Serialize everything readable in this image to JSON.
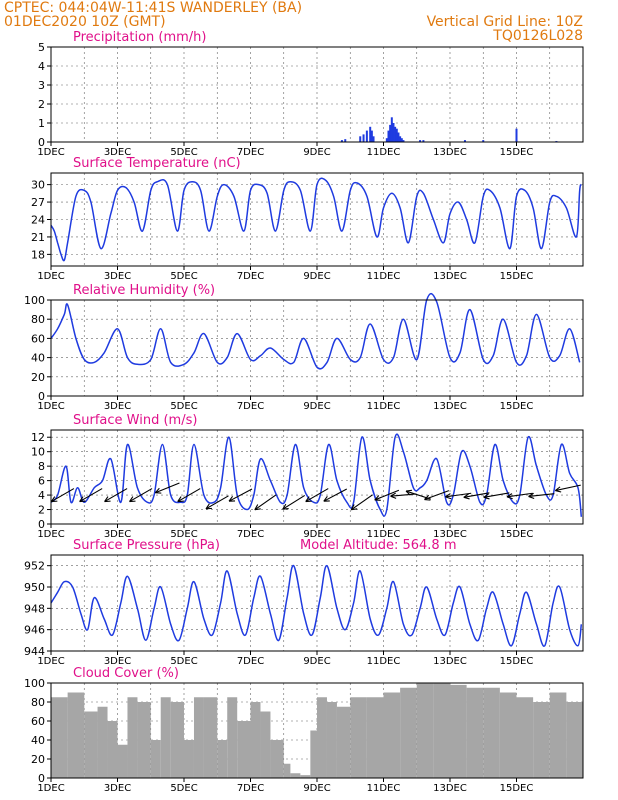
{
  "header": {
    "line1_left": "CPTEC:   044:04W-11:41S   WANDERLEY (BA)",
    "line2_left": "01DEC2020 10Z (GMT)",
    "line1_right": "Vertical Grid Line: 10Z",
    "line2_right": "TQ0126L028"
  },
  "colors": {
    "header": "#e07a10",
    "title": "#e0108a",
    "line": "#1f3be0",
    "bar": "#1f3be0",
    "cloud": "#a6a6a6",
    "arrow": "#000000"
  },
  "x_tick_labels": [
    "1DEC",
    "3DEC",
    "5DEC",
    "7DEC",
    "9DEC",
    "11DEC",
    "13DEC",
    "15DEC"
  ],
  "chart_data": [
    {
      "type": "bar",
      "id": "precip",
      "title": "Precipitation (mm/h)",
      "y_ticks": [
        "0",
        "1",
        "2",
        "3",
        "4",
        "5"
      ],
      "ylim": [
        0,
        5
      ],
      "x_units": "days since 01DEC2020 10Z",
      "x": [
        8.75,
        8.85,
        9.3,
        9.4,
        9.5,
        9.6,
        9.65,
        9.7,
        10.1,
        10.15,
        10.2,
        10.25,
        10.3,
        10.35,
        10.4,
        10.45,
        10.5,
        10.55,
        10.6,
        11.1,
        11.2,
        12.45,
        13.0,
        14.0,
        15.2
      ],
      "values": [
        0.1,
        0.15,
        0.3,
        0.4,
        0.6,
        0.8,
        0.6,
        0.3,
        0.2,
        0.6,
        0.9,
        1.3,
        1.0,
        0.8,
        0.7,
        0.5,
        0.3,
        0.2,
        0.1,
        0.1,
        0.1,
        0.1,
        0.1,
        0.7,
        0.05
      ],
      "grid": true
    },
    {
      "type": "line",
      "id": "temp",
      "title": "Surface Temperature (nC)",
      "y_ticks": [
        "18",
        "21",
        "24",
        "27",
        "30"
      ],
      "ylim": [
        16,
        32
      ],
      "t": [
        0,
        0.1,
        0.2,
        0.3,
        0.4,
        0.5,
        0.75,
        1.0,
        1.2,
        1.5,
        1.8,
        2.0,
        2.25,
        2.5,
        2.75,
        3.0,
        3.2,
        3.5,
        3.8,
        4.0,
        4.25,
        4.5,
        4.75,
        5.0,
        5.2,
        5.5,
        5.8,
        6.0,
        6.25,
        6.5,
        6.75,
        7.0,
        7.2,
        7.5,
        7.8,
        8.0,
        8.25,
        8.5,
        8.75,
        9.0,
        9.2,
        9.5,
        9.8,
        10.0,
        10.25,
        10.5,
        10.75,
        11.0,
        11.2,
        11.5,
        11.8,
        12.0,
        12.25,
        12.5,
        12.75,
        13.0,
        13.2,
        13.5,
        13.8,
        14.0,
        14.25,
        14.5,
        14.75,
        15.0,
        15.2,
        15.5,
        15.8,
        15.9,
        15.95
      ],
      "values": [
        23,
        22,
        20,
        18,
        17,
        20,
        28,
        29,
        27,
        19,
        25,
        29,
        29.5,
        27,
        22,
        29,
        30.5,
        30,
        22,
        29,
        30.5,
        29,
        22,
        28,
        30,
        28,
        22,
        29,
        30,
        28.5,
        22,
        29,
        30.5,
        29,
        22,
        30,
        30.8,
        28,
        22,
        29,
        30.3,
        28,
        21,
        26,
        28.5,
        26,
        20,
        28,
        28.5,
        24,
        20,
        25,
        27,
        24,
        20,
        28,
        29,
        26,
        19,
        28,
        29,
        26,
        19,
        27,
        28,
        26,
        21,
        29,
        30
      ],
      "grid": true
    },
    {
      "type": "line",
      "id": "rh",
      "title": "Relative Humidity (%)",
      "y_ticks": [
        "0",
        "20",
        "40",
        "60",
        "80",
        "100"
      ],
      "ylim": [
        0,
        100
      ],
      "t": [
        0,
        0.2,
        0.4,
        0.5,
        0.75,
        1.0,
        1.3,
        1.6,
        2.0,
        2.3,
        2.6,
        3.0,
        3.3,
        3.6,
        4.0,
        4.3,
        4.6,
        5.0,
        5.3,
        5.6,
        6.0,
        6.3,
        6.6,
        7.0,
        7.3,
        7.6,
        8.0,
        8.3,
        8.6,
        9.0,
        9.3,
        9.6,
        10.0,
        10.3,
        10.6,
        11.0,
        11.3,
        11.6,
        12.0,
        12.3,
        12.6,
        13.0,
        13.3,
        13.6,
        14.0,
        14.3,
        14.6,
        15.0,
        15.3,
        15.6,
        15.9
      ],
      "values": [
        60,
        70,
        85,
        95,
        60,
        38,
        35,
        45,
        70,
        40,
        33,
        38,
        70,
        35,
        33,
        45,
        65,
        35,
        40,
        65,
        38,
        42,
        50,
        38,
        35,
        60,
        30,
        35,
        60,
        38,
        40,
        75,
        38,
        40,
        80,
        38,
        100,
        98,
        40,
        45,
        90,
        38,
        42,
        80,
        35,
        42,
        85,
        40,
        42,
        70,
        35
      ],
      "grid": true
    },
    {
      "type": "line",
      "id": "wind",
      "title": "Surface Wind (m/s)",
      "y_ticks": [
        "0",
        "2",
        "4",
        "6",
        "8",
        "10",
        "12"
      ],
      "ylim": [
        0,
        13
      ],
      "t": [
        0,
        0.2,
        0.45,
        0.6,
        0.8,
        1.0,
        1.3,
        1.55,
        1.8,
        2.1,
        2.3,
        2.6,
        2.9,
        3.1,
        3.35,
        3.6,
        3.9,
        4.1,
        4.3,
        4.6,
        4.9,
        5.1,
        5.35,
        5.6,
        5.9,
        6.1,
        6.3,
        6.6,
        6.9,
        7.1,
        7.35,
        7.6,
        7.9,
        8.1,
        8.35,
        8.6,
        8.9,
        9.1,
        9.35,
        9.6,
        9.9,
        10.1,
        10.35,
        10.6,
        10.9,
        11.1,
        11.3,
        11.6,
        11.9,
        12.1,
        12.35,
        12.6,
        12.9,
        13.1,
        13.35,
        13.6,
        13.9,
        14.1,
        14.35,
        14.6,
        14.9,
        15.1,
        15.35,
        15.6,
        15.85,
        15.95
      ],
      "values": [
        3,
        4,
        8,
        3,
        5,
        3,
        5,
        6,
        9,
        3,
        11,
        5,
        3,
        4,
        11,
        4,
        3,
        4,
        11,
        4,
        3,
        5,
        12,
        4,
        2,
        4,
        9,
        6,
        3,
        4,
        11,
        5,
        3,
        4,
        11,
        6,
        3,
        3,
        12,
        6,
        2,
        2,
        12,
        10,
        5,
        5,
        6,
        9,
        3,
        4,
        10,
        8,
        3,
        4,
        11,
        6,
        3,
        4,
        12,
        8,
        4,
        4,
        11,
        7,
        5,
        1
      ],
      "arrows": {
        "t": [
          0.35,
          1.2,
          1.95,
          2.7,
          3.5,
          4.15,
          5.0,
          5.7,
          6.45,
          7.3,
          8.0,
          8.55,
          9.35,
          10.1,
          10.6,
          11.05,
          11.6,
          12.25,
          12.8,
          13.4,
          14.1,
          14.75,
          15.55
        ],
        "y": [
          4,
          4,
          4,
          4,
          5,
          4,
          3,
          4,
          3,
          3,
          4,
          4,
          3,
          4,
          4,
          4,
          4,
          4,
          4,
          4,
          4,
          4,
          5
        ],
        "angle_deg": [
          30,
          30,
          30,
          30,
          22,
          30,
          30,
          28,
          35,
          32,
          30,
          28,
          35,
          22,
          5,
          -18,
          20,
          8,
          10,
          10,
          8,
          6,
          12
        ]
      },
      "grid": true
    },
    {
      "type": "line",
      "id": "pressure",
      "title": "Surface Pressure (hPa)",
      "annotation": "Model Altitude: 564.8  m",
      "y_ticks": [
        "944",
        "946",
        "948",
        "950",
        "952"
      ],
      "ylim": [
        944,
        953
      ],
      "t": [
        0,
        0.2,
        0.4,
        0.65,
        0.9,
        1.1,
        1.3,
        1.6,
        1.85,
        2.1,
        2.3,
        2.6,
        2.85,
        3.1,
        3.3,
        3.6,
        3.85,
        4.1,
        4.3,
        4.6,
        4.85,
        5.1,
        5.3,
        5.6,
        5.85,
        6.1,
        6.3,
        6.6,
        6.85,
        7.1,
        7.3,
        7.6,
        7.85,
        8.1,
        8.3,
        8.6,
        8.85,
        9.1,
        9.3,
        9.6,
        9.85,
        10.1,
        10.3,
        10.6,
        10.85,
        11.1,
        11.3,
        11.6,
        11.85,
        12.1,
        12.3,
        12.6,
        12.85,
        13.1,
        13.3,
        13.6,
        13.85,
        14.1,
        14.3,
        14.6,
        14.85,
        15.1,
        15.3,
        15.6,
        15.85,
        15.95
      ],
      "values": [
        948.5,
        949.5,
        950.5,
        950,
        947.5,
        946,
        949,
        947,
        945.5,
        948.5,
        951,
        948,
        945,
        948,
        950,
        946.5,
        945,
        948,
        950.5,
        947,
        945.5,
        948.5,
        951.5,
        947.5,
        945.5,
        949,
        951,
        947.5,
        945,
        949,
        952,
        947.5,
        945.5,
        949,
        952,
        948,
        946,
        948.5,
        951.5,
        947,
        945.5,
        948,
        950.5,
        946.5,
        945.5,
        948,
        950,
        947,
        945.5,
        948.5,
        950,
        946.5,
        945,
        948,
        949.5,
        946.5,
        944.5,
        947.5,
        949.5,
        946.5,
        944.5,
        948.5,
        950,
        946,
        944.5,
        946.5
      ],
      "grid": true
    },
    {
      "type": "bar",
      "id": "cloud",
      "title": "Cloud Cover (%)",
      "y_ticks": [
        "0",
        "20",
        "40",
        "60",
        "80",
        "100"
      ],
      "ylim": [
        0,
        100
      ],
      "segments_t": [
        0,
        0.5,
        1.0,
        1.4,
        1.7,
        2.0,
        2.3,
        2.6,
        3.0,
        3.3,
        3.6,
        4.0,
        4.3,
        4.6,
        5.0,
        5.3,
        5.6,
        6.0,
        6.3,
        6.6,
        7.0,
        7.2,
        7.5,
        7.8,
        8.0,
        8.3,
        8.6,
        9.0,
        9.5,
        10.0,
        10.5,
        11.0,
        11.5,
        12.0,
        12.5,
        13.0,
        13.5,
        14.0,
        14.5,
        15.0,
        15.5,
        16.0
      ],
      "values": [
        85,
        90,
        70,
        75,
        60,
        35,
        85,
        80,
        40,
        85,
        80,
        40,
        85,
        85,
        40,
        85,
        60,
        80,
        70,
        40,
        15,
        5,
        3,
        50,
        85,
        80,
        75,
        85,
        85,
        90,
        95,
        100,
        100,
        98,
        95,
        95,
        90,
        85,
        80,
        90,
        80,
        85
      ],
      "grid": true
    }
  ]
}
